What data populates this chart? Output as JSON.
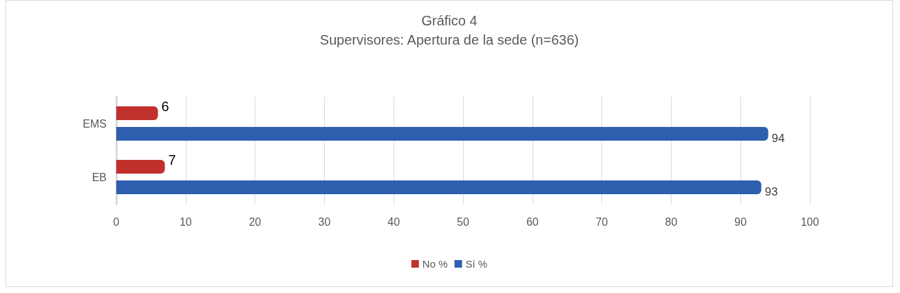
{
  "chart_data": {
    "type": "bar",
    "orientation": "horizontal",
    "title": "Gráfico 4",
    "subtitle": "Supervisores: Apertura de la sede (n=636)",
    "categories": [
      "EMS",
      "EB"
    ],
    "series": [
      {
        "name": "No %",
        "color": "#c0302c",
        "values": [
          6,
          7
        ]
      },
      {
        "name": "Sí %",
        "color": "#2e5fae",
        "values": [
          94,
          93
        ]
      }
    ],
    "xlim": [
      0,
      100
    ],
    "xticks": [
      0,
      10,
      20,
      30,
      40,
      50,
      60,
      70,
      80,
      90,
      100
    ],
    "grid": "x",
    "legend": "bottom",
    "data_labels": true
  }
}
